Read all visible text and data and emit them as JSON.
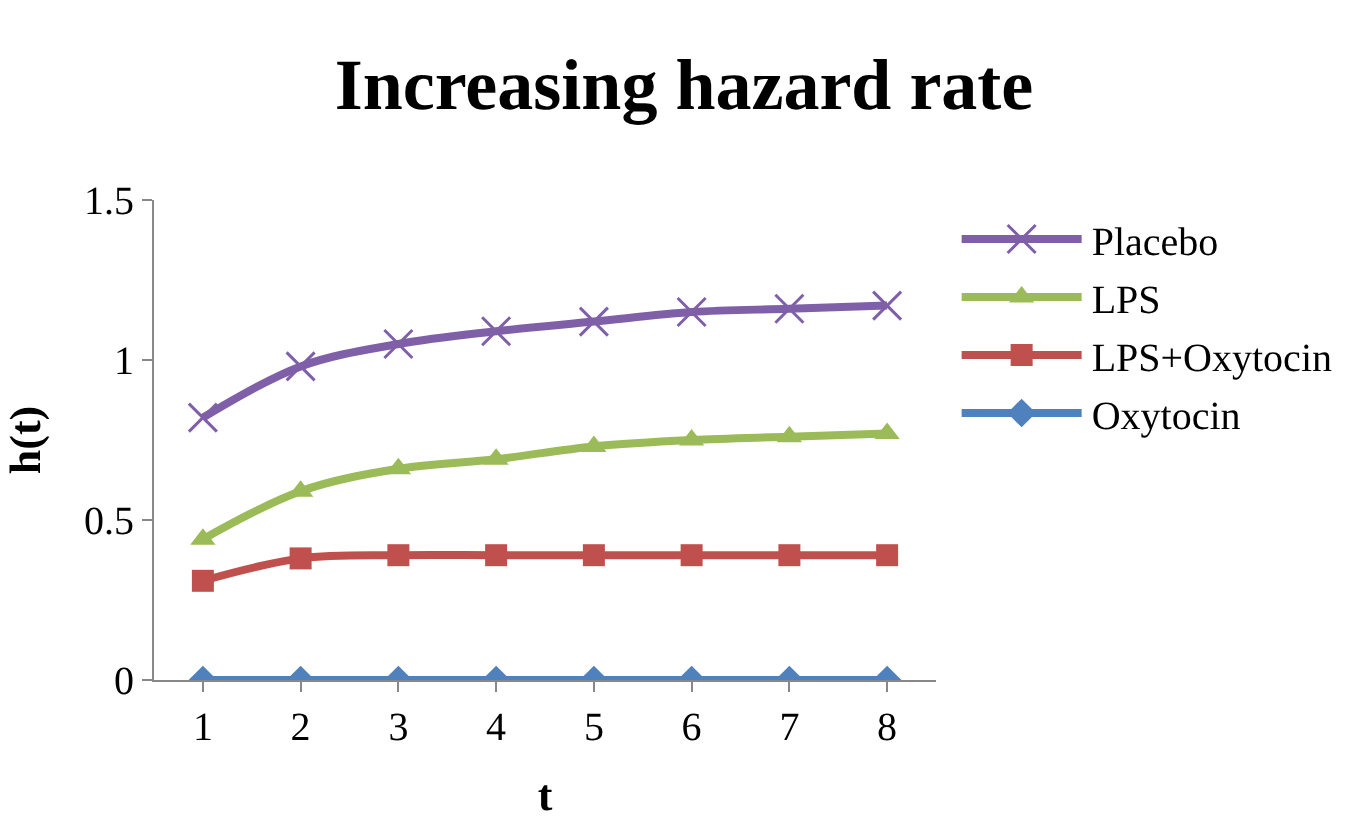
{
  "chart_data": {
    "type": "line",
    "title": "Increasing hazard rate",
    "xlabel": "t",
    "ylabel": "h(t)",
    "categories": [
      "1",
      "2",
      "3",
      "4",
      "5",
      "6",
      "7",
      "8"
    ],
    "ylim": [
      0,
      1.5
    ],
    "yticks": [
      0,
      0.5,
      1,
      1.5
    ],
    "legend": "right",
    "series": [
      {
        "name": "Placebo",
        "color": "#7f60a8",
        "marker": "cross",
        "values": [
          0.82,
          0.98,
          1.05,
          1.09,
          1.12,
          1.15,
          1.16,
          1.17
        ]
      },
      {
        "name": "LPS",
        "color": "#9bbb59",
        "marker": "triangle",
        "values": [
          0.44,
          0.59,
          0.66,
          0.69,
          0.73,
          0.75,
          0.76,
          0.77
        ]
      },
      {
        "name": "LPS+Oxytocin",
        "color": "#c0504d",
        "marker": "square",
        "values": [
          0.31,
          0.38,
          0.39,
          0.39,
          0.39,
          0.39,
          0.39,
          0.39
        ]
      },
      {
        "name": "Oxytocin",
        "color": "#4f81bd",
        "marker": "diamond",
        "values": [
          0,
          0,
          0,
          0,
          0,
          0,
          0,
          0
        ]
      }
    ]
  }
}
